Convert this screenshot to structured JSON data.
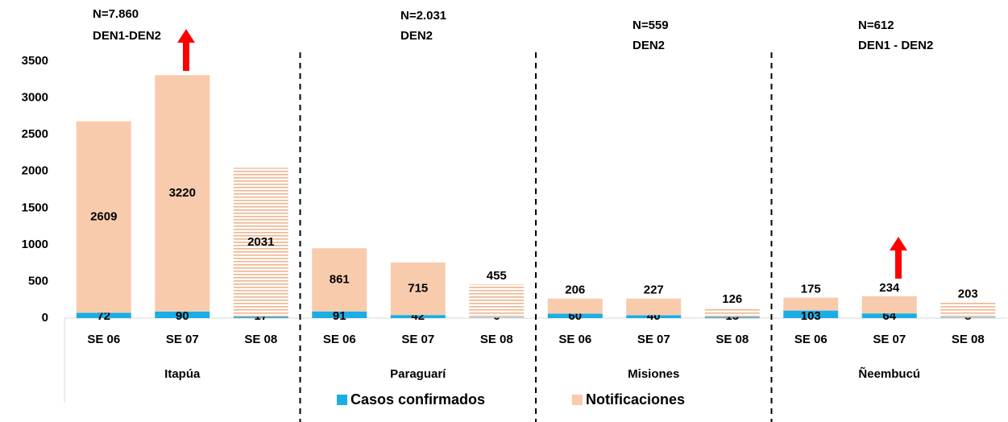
{
  "chart_data": {
    "type": "bar",
    "stacked": true,
    "categories": [
      "SE 06",
      "SE 07",
      "SE 08",
      "SE 06",
      "SE 07",
      "SE 08",
      "SE 06",
      "SE 07",
      "SE 08",
      "SE 06",
      "SE 07",
      "SE 08"
    ],
    "hatched": [
      false,
      false,
      true,
      false,
      false,
      true,
      false,
      false,
      true,
      false,
      false,
      true
    ],
    "groups": [
      {
        "name": "Itapúa",
        "n": "N=7.860",
        "serotype": "DEN1-DEN2"
      },
      {
        "name": "Paraguarí",
        "n": "N=2.031",
        "serotype": "DEN2"
      },
      {
        "name": "Misiones",
        "n": "N=559",
        "serotype": "DEN2"
      },
      {
        "name": "Ñeembucú",
        "n": "N=612",
        "serotype": "DEN1 - DEN2"
      }
    ],
    "series": [
      {
        "name": "Casos confirmados",
        "color": "#1aaee5",
        "values": [
          72,
          90,
          17,
          91,
          42,
          6,
          60,
          40,
          15,
          103,
          64,
          8
        ]
      },
      {
        "name": "Notificaciones",
        "color": "#f8cbad",
        "values": [
          2609,
          3220,
          2031,
          861,
          715,
          455,
          206,
          227,
          126,
          175,
          234,
          203
        ]
      }
    ],
    "ylim": [
      0,
      3500
    ],
    "yticks": [
      0,
      500,
      1000,
      1500,
      2000,
      2500,
      3000,
      3500
    ],
    "grid": false
  }
}
